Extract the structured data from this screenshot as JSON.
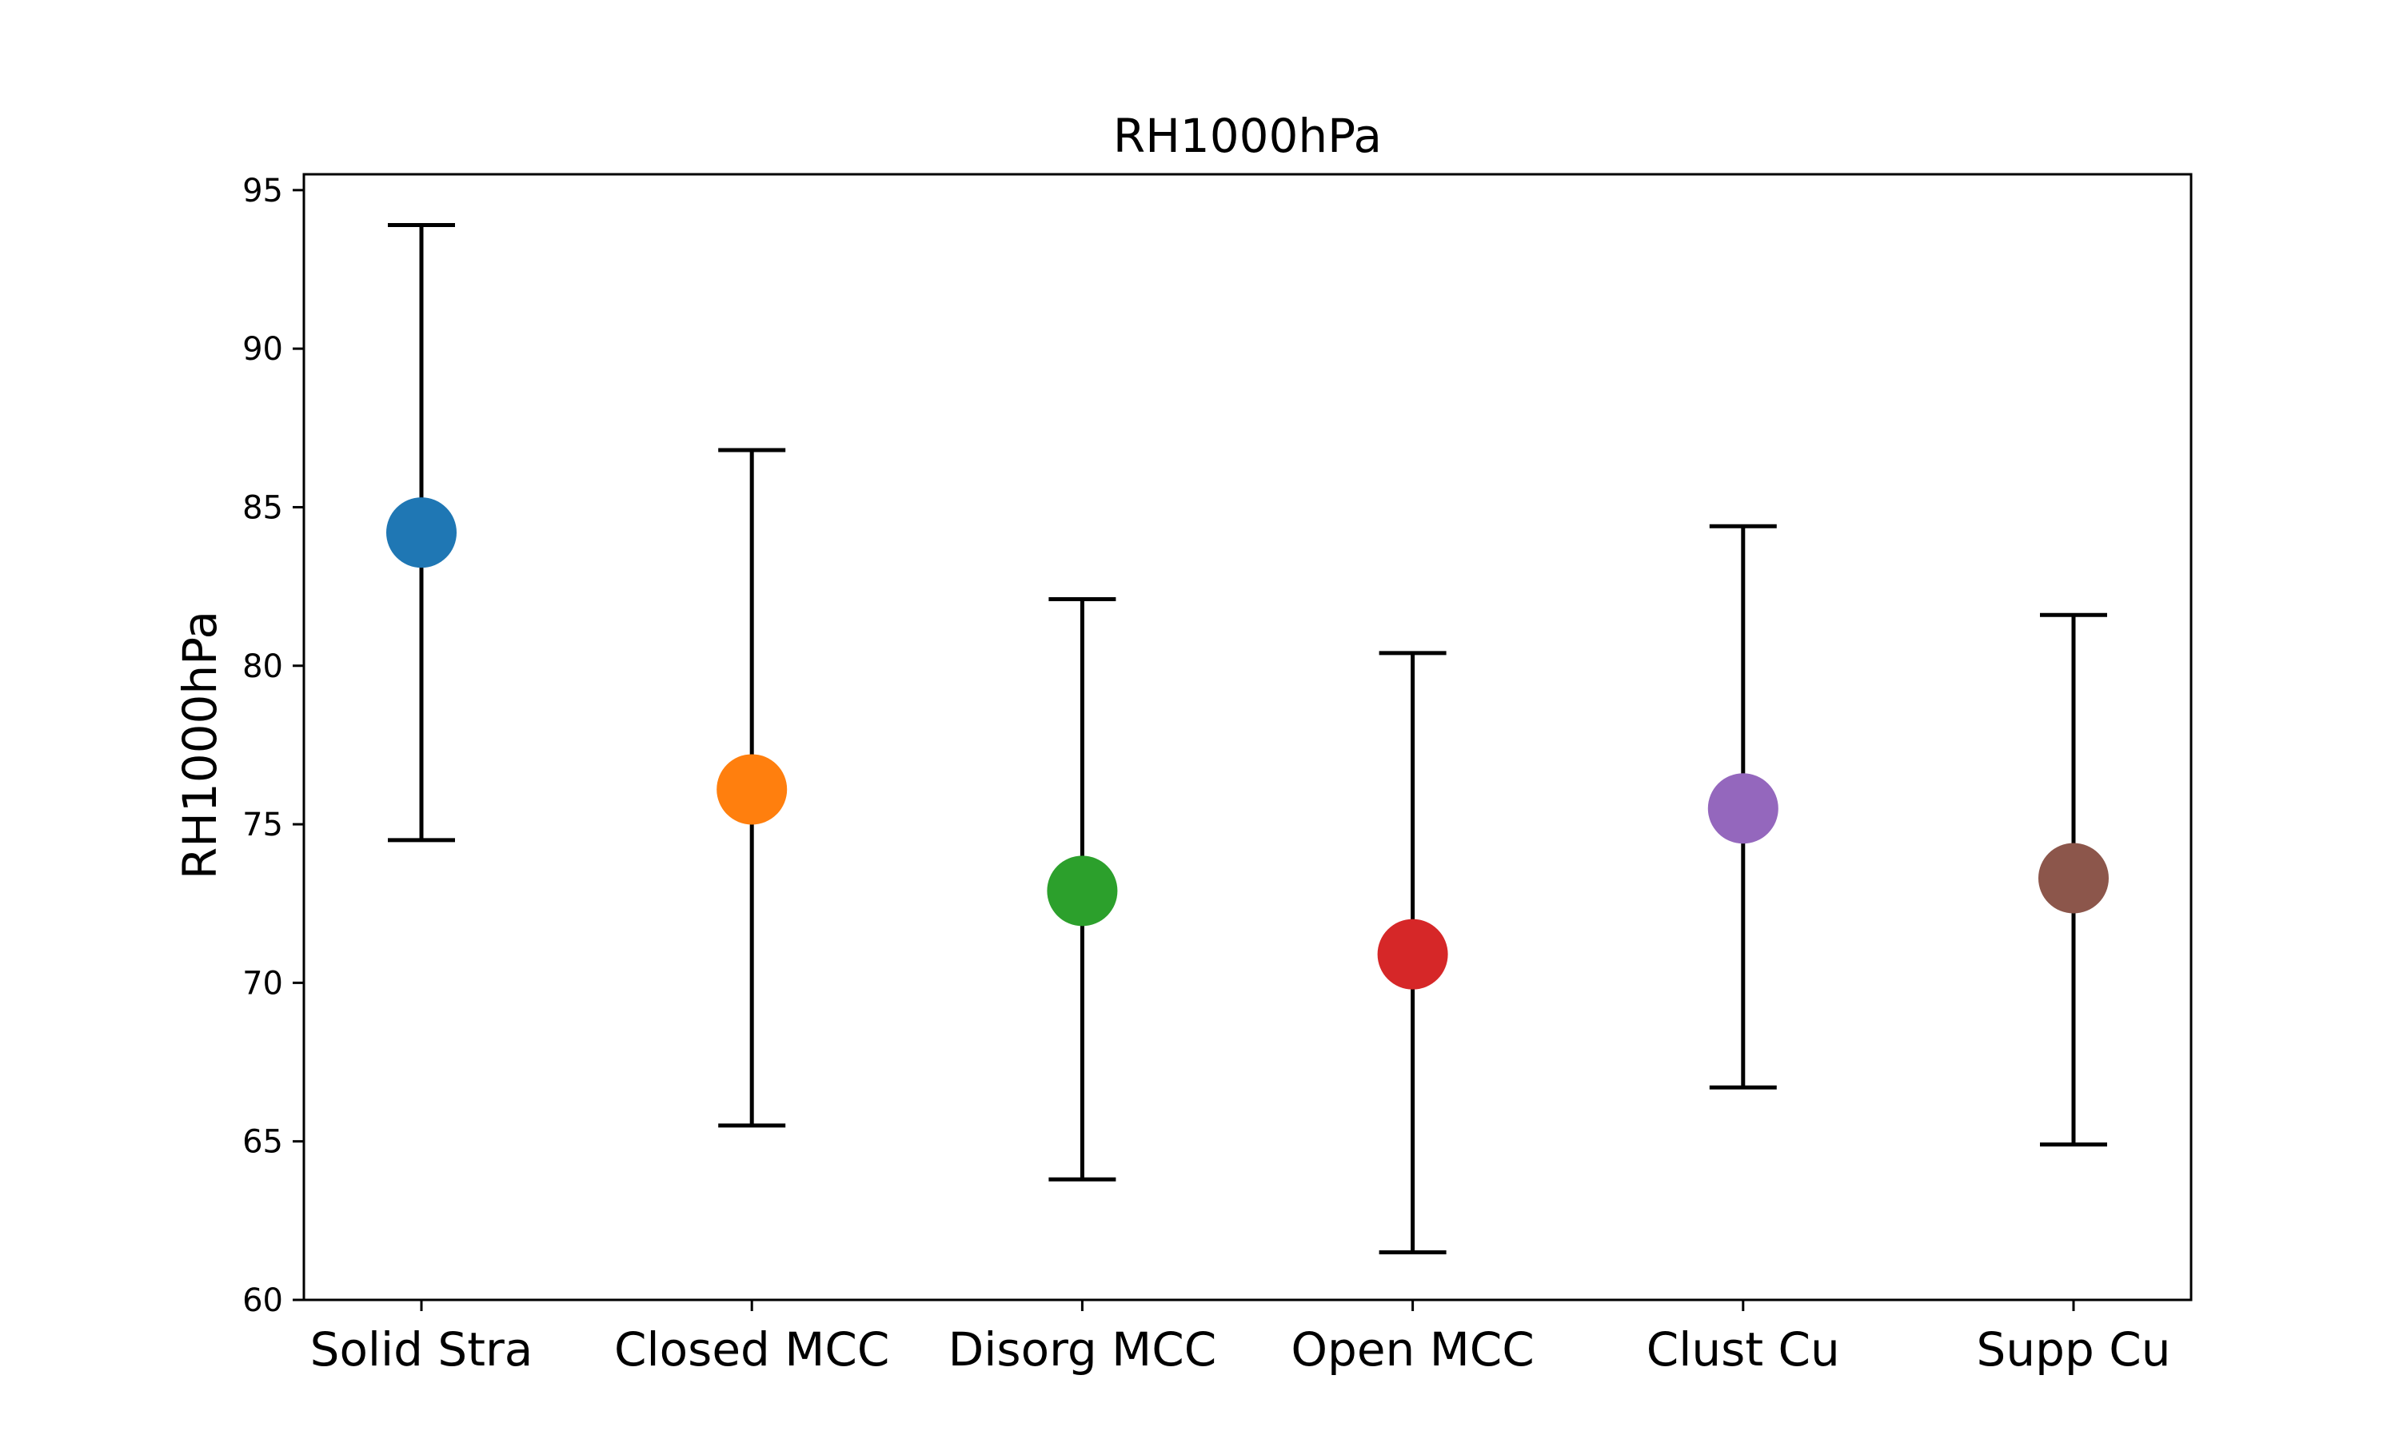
{
  "chart_data": {
    "type": "scatter",
    "title": "RH1000hPa",
    "xlabel": "",
    "ylabel": "RH1000hPa",
    "ylim": [
      60,
      95.5
    ],
    "yticks": [
      60,
      65,
      70,
      75,
      80,
      85,
      90,
      95
    ],
    "grid": false,
    "categories": [
      "Solid Stra",
      "Closed MCC",
      "Disorg MCC",
      "Open MCC",
      "Clust Cu",
      "Supp Cu"
    ],
    "values": [
      84.2,
      76.1,
      72.9,
      70.9,
      75.5,
      73.3
    ],
    "error_low": [
      74.5,
      65.5,
      63.8,
      61.5,
      66.7,
      64.9
    ],
    "error_high": [
      93.9,
      86.8,
      82.1,
      80.4,
      84.4,
      81.6
    ],
    "colors": [
      "#1f77b4",
      "#ff7f0e",
      "#2ca02c",
      "#d62728",
      "#9467bd",
      "#8c564b"
    ]
  }
}
